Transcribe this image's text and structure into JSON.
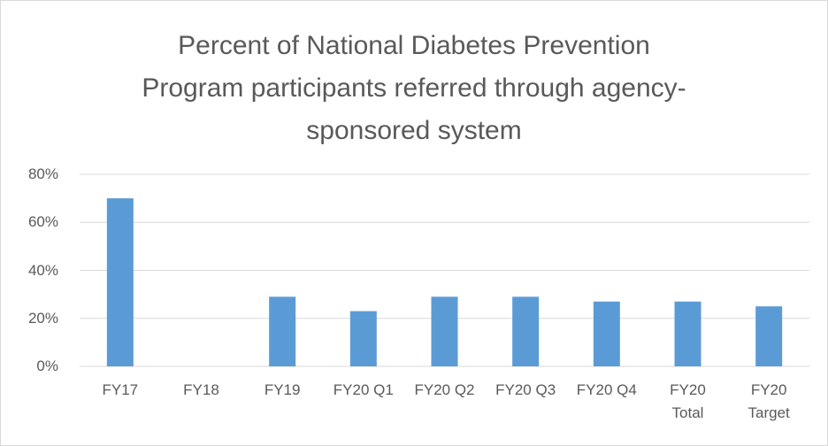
{
  "chart_data": {
    "type": "bar",
    "title": "Percent of National Diabetes Prevention Program participants referred through agency-sponsored system",
    "categories": [
      "FY17",
      "FY18",
      "FY19",
      "FY20 Q1",
      "FY20 Q2",
      "FY20 Q3",
      "FY20 Q4",
      "FY20 Total",
      "FY20 Target"
    ],
    "values": [
      70,
      null,
      29,
      23,
      29,
      29,
      27,
      27,
      25
    ],
    "color": "#5b9bd5",
    "ylim": [
      0,
      80
    ],
    "yticks": [
      {
        "value": 0,
        "label": "0%"
      },
      {
        "value": 20,
        "label": "20%"
      },
      {
        "value": 40,
        "label": "40%"
      },
      {
        "value": 60,
        "label": "60%"
      },
      {
        "value": 80,
        "label": "80%"
      }
    ],
    "grid": true
  }
}
